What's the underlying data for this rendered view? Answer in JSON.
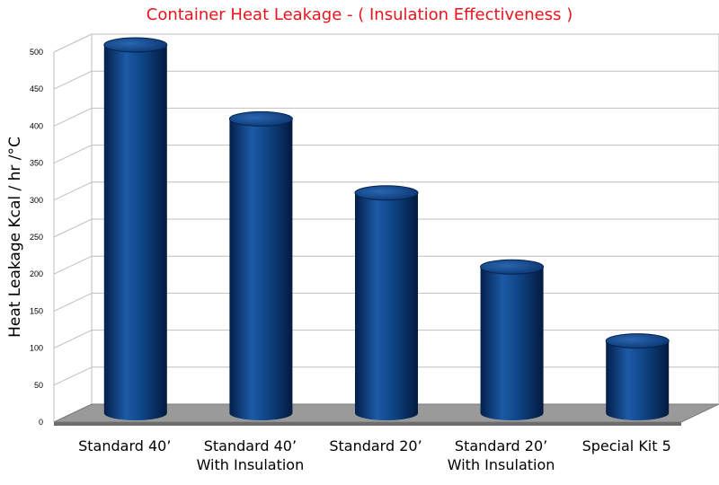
{
  "colors": {
    "title": "#e8141c",
    "bar": "#0d3f7f",
    "floor": "#9a9a9a",
    "grid": "#bfbfbf",
    "text": "#000000"
  },
  "chart_data": {
    "type": "bar",
    "title": "Container Heat Leakage - ( Insulation Effectiveness )",
    "xlabel": "",
    "ylabel": "Heat Leakage Kcal / hr /°C",
    "ylim": [
      0,
      500
    ],
    "yticks": [
      0,
      50,
      100,
      150,
      200,
      250,
      300,
      350,
      400,
      450,
      500
    ],
    "categories": [
      [
        "Standard 40’"
      ],
      [
        "Standard 40’",
        "With Insulation"
      ],
      [
        "Standard 20’"
      ],
      [
        "Standard 20’",
        "With Insulation"
      ],
      [
        "Special Kit 5"
      ]
    ],
    "series": [
      {
        "values": [
          500,
          400,
          300,
          200,
          100
        ]
      }
    ],
    "grid": true,
    "legend": "none"
  }
}
